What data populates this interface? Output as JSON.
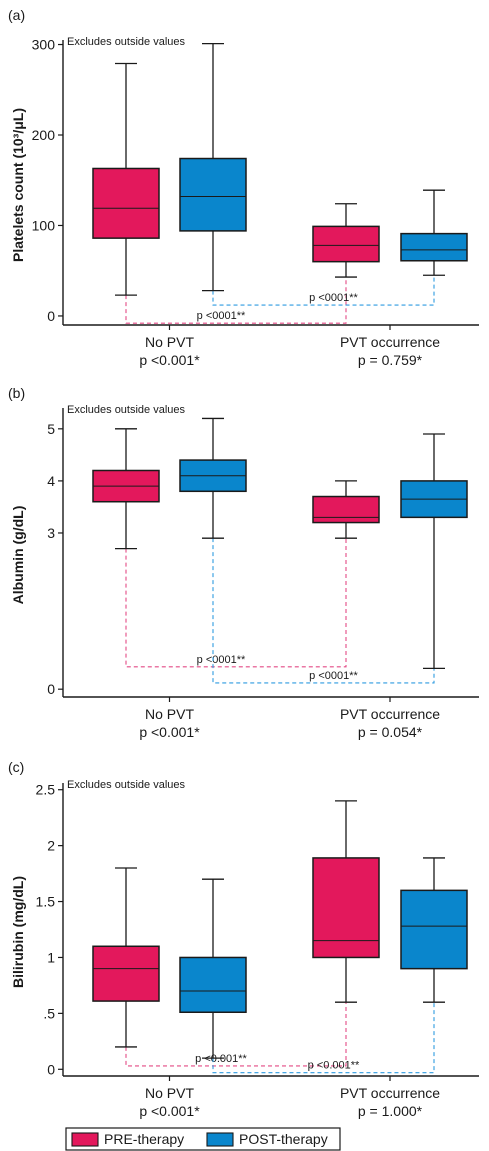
{
  "colors": {
    "pre": "#E3185C",
    "post": "#0A86CC",
    "pre_dash": "#E34A85",
    "post_dash": "#2E9BE0",
    "stroke": "#1a1a1a"
  },
  "legend": {
    "pre_label": "PRE-therapy",
    "post_label": "POST-therapy"
  },
  "chart_data": [
    {
      "type": "box",
      "panel_label": "(a)",
      "note": "Excludes outside values",
      "ylabel": "Platelets count (10³/μL)",
      "ylim": [
        -10,
        305
      ],
      "yticks": [
        0,
        100,
        200,
        300
      ],
      "yticklabels": [
        "0",
        "100",
        "200",
        "300"
      ],
      "categories": [
        {
          "label": "No PVT",
          "pvalue": "p <0.001*"
        },
        {
          "label": "PVT occurrence",
          "pvalue": "p = 0.759*"
        }
      ],
      "series": [
        {
          "name": "PRE-therapy",
          "boxes": [
            {
              "min": 23,
              "q1": 86,
              "median": 119,
              "q3": 163,
              "max": 279
            },
            {
              "min": 43,
              "q1": 60,
              "median": 78,
              "q3": 99,
              "max": 124
            }
          ]
        },
        {
          "name": "POST-therapy",
          "boxes": [
            {
              "min": 28,
              "q1": 94,
              "median": 132,
              "q3": 174,
              "max": 301
            },
            {
              "min": 45,
              "q1": 61,
              "median": 73,
              "q3": 91,
              "max": 139
            }
          ]
        }
      ],
      "comparisons": [
        {
          "series": "pre",
          "y": -8,
          "label": "p <0001**"
        },
        {
          "series": "post",
          "y": 12,
          "label": "p <0001**"
        }
      ]
    },
    {
      "type": "box",
      "panel_label": "(b)",
      "note": "Excludes outside values",
      "ylabel": "Albumin (g/dL)",
      "ylim": [
        -0.15,
        5.4
      ],
      "yticks": [
        0,
        3,
        4,
        5
      ],
      "yticklabels": [
        "0",
        "3",
        "4",
        "5"
      ],
      "categories": [
        {
          "label": "No PVT",
          "pvalue": "p <0.001*"
        },
        {
          "label": "PVT occurrence",
          "pvalue": "p = 0.054*"
        }
      ],
      "series": [
        {
          "name": "PRE-therapy",
          "boxes": [
            {
              "min": 2.7,
              "q1": 3.6,
              "median": 3.9,
              "q3": 4.2,
              "max": 5.0
            },
            {
              "min": 2.9,
              "q1": 3.2,
              "median": 3.3,
              "q3": 3.7,
              "max": 4.0
            }
          ]
        },
        {
          "name": "POST-therapy",
          "boxes": [
            {
              "min": 2.9,
              "q1": 3.8,
              "median": 4.1,
              "q3": 4.4,
              "max": 5.2
            },
            {
              "min": 0.4,
              "q1": 3.3,
              "median": 3.65,
              "q3": 4.0,
              "max": 4.9
            }
          ]
        }
      ],
      "comparisons": [
        {
          "series": "pre",
          "y": 0.43,
          "label": "p <0001**"
        },
        {
          "series": "post",
          "y": 0.12,
          "label": "p <0001**"
        }
      ]
    },
    {
      "type": "box",
      "panel_label": "(c)",
      "note": "Excludes outside values",
      "ylabel": "Bilirubin (mg/dL)",
      "ylim": [
        -0.06,
        2.56
      ],
      "yticks": [
        0,
        0.5,
        1,
        1.5,
        2,
        2.5
      ],
      "yticklabels": [
        "0",
        ".5",
        "1",
        "1.5",
        "2",
        "2.5"
      ],
      "categories": [
        {
          "label": "No PVT",
          "pvalue": "p <0.001*"
        },
        {
          "label": "PVT occurrence",
          "pvalue": "p = 1.000*"
        }
      ],
      "series": [
        {
          "name": "PRE-therapy",
          "boxes": [
            {
              "min": 0.2,
              "q1": 0.61,
              "median": 0.9,
              "q3": 1.1,
              "max": 1.8
            },
            {
              "min": 0.6,
              "q1": 1.0,
              "median": 1.15,
              "q3": 1.89,
              "max": 2.4
            }
          ]
        },
        {
          "name": "POST-therapy",
          "boxes": [
            {
              "min": 0.1,
              "q1": 0.51,
              "median": 0.7,
              "q3": 1.0,
              "max": 1.7
            },
            {
              "min": 0.6,
              "q1": 0.9,
              "median": 1.28,
              "q3": 1.6,
              "max": 1.89
            }
          ]
        }
      ],
      "comparisons": [
        {
          "series": "pre",
          "y": 0.03,
          "label": "p <0.001**"
        },
        {
          "series": "post",
          "y": -0.03,
          "label": "p <0.001**"
        }
      ]
    }
  ]
}
